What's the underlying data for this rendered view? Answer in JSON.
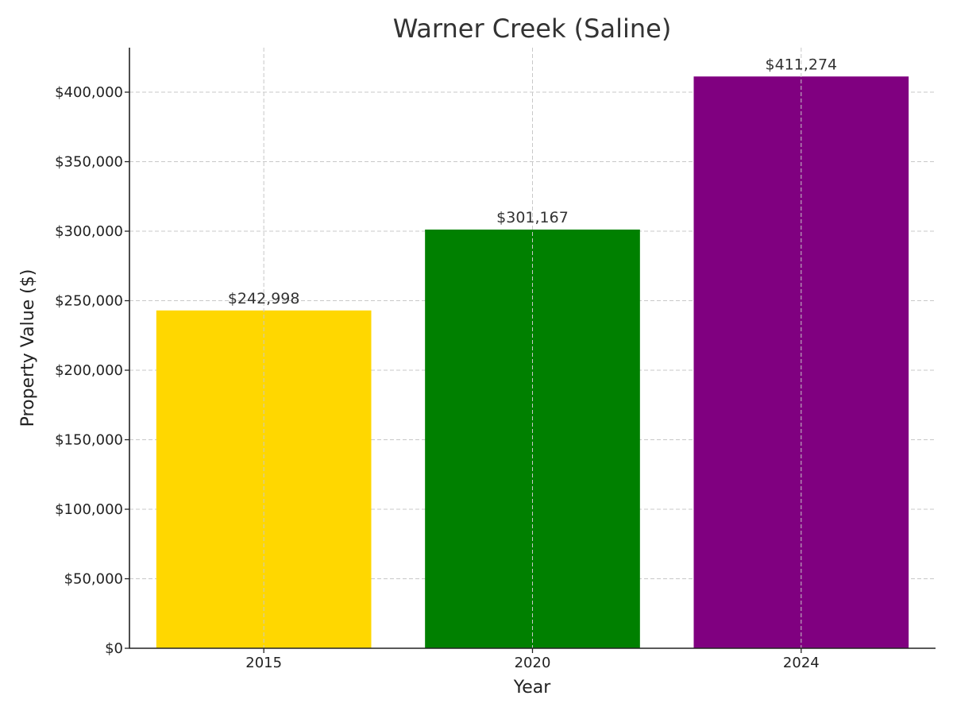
{
  "chart_data": {
    "type": "bar",
    "title": "Warner Creek (Saline)",
    "xlabel": "Year",
    "ylabel": "Property Value ($)",
    "categories": [
      "2015",
      "2020",
      "2024"
    ],
    "values": [
      242998,
      301167,
      411274
    ],
    "value_labels": [
      "$242,998",
      "$301,167",
      "$411,274"
    ],
    "colors": [
      "#FFD700",
      "#008000",
      "#800080"
    ],
    "ylim": [
      0,
      432000
    ],
    "yticks": [
      0,
      50000,
      100000,
      150000,
      200000,
      250000,
      300000,
      350000,
      400000
    ],
    "ytick_labels": [
      "$0",
      "$50,000",
      "$100,000",
      "$150,000",
      "$200,000",
      "$250,000",
      "$300,000",
      "$350,000",
      "$400,000"
    ],
    "grid": true,
    "legend": "none"
  }
}
